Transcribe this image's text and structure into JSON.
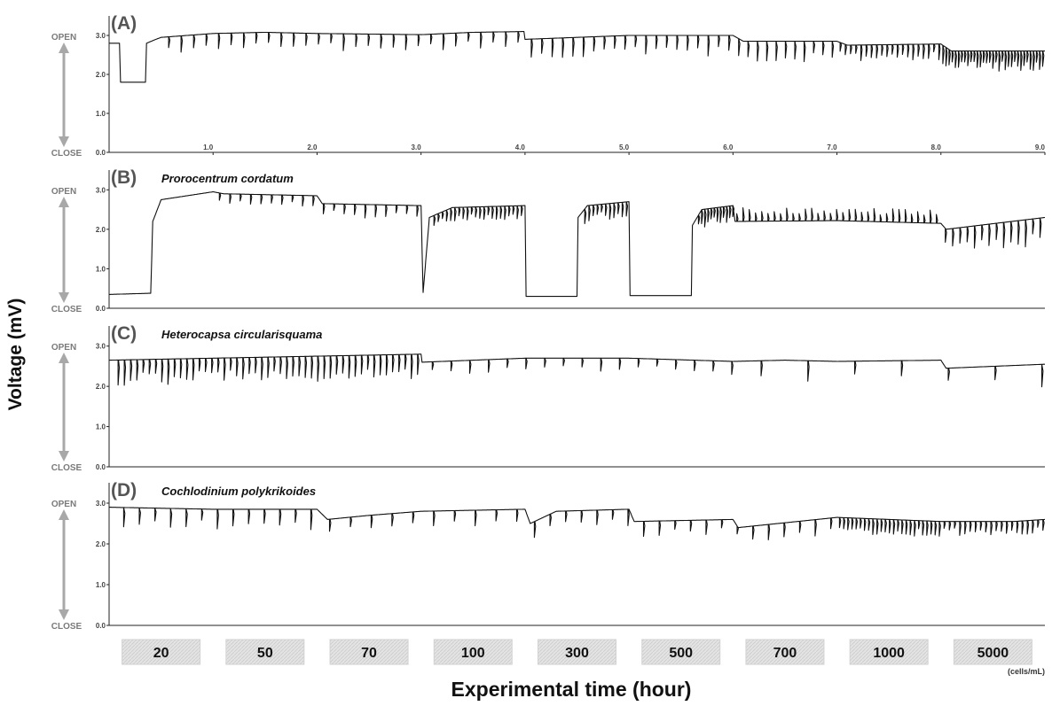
{
  "figure": {
    "ylabel": "Voltage (mV)",
    "xlabel": "Experimental time (hour)",
    "open_label": "OPEN",
    "close_label": "CLOSE",
    "concentration_unit": "(cells/mL)",
    "concentrations": [
      "20",
      "50",
      "70",
      "100",
      "300",
      "500",
      "700",
      "1000",
      "5000"
    ]
  },
  "chart_data": [
    {
      "type": "line",
      "panel": "(A)",
      "title": "",
      "ylim": [
        0,
        3.5
      ],
      "xlim": [
        0,
        9
      ],
      "yticks": [
        "0.0",
        "1.0",
        "2.0",
        "3.0"
      ],
      "xticks": [
        "1.0",
        "2.0",
        "3.0",
        "4.0",
        "5.0",
        "6.0",
        "7.0",
        "8.0",
        "9.0"
      ],
      "baseline": [
        [
          0,
          2.8
        ],
        [
          0.1,
          2.8
        ],
        [
          0.11,
          1.8
        ],
        [
          0.35,
          1.8
        ],
        [
          0.36,
          2.8
        ],
        [
          0.45,
          2.9
        ],
        [
          0.5,
          2.95
        ],
        [
          1.0,
          3.05
        ],
        [
          1.5,
          3.08
        ],
        [
          2.0,
          3.05
        ],
        [
          3.0,
          3.02
        ],
        [
          3.5,
          3.08
        ],
        [
          3.99,
          3.1
        ],
        [
          4.0,
          2.9
        ],
        [
          5.0,
          3.0
        ],
        [
          6.0,
          3.0
        ],
        [
          6.1,
          2.85
        ],
        [
          7.0,
          2.85
        ],
        [
          7.1,
          2.75
        ],
        [
          8.0,
          2.78
        ],
        [
          8.1,
          2.6
        ],
        [
          9.0,
          2.6
        ]
      ],
      "spikes": [
        {
          "range": [
            0.5,
            4.0
          ],
          "interval": 0.12,
          "depth": 0.4
        },
        {
          "range": [
            4.0,
            6.0
          ],
          "interval": 0.1,
          "depth": 0.5
        },
        {
          "range": [
            6.0,
            7.0
          ],
          "interval": 0.09,
          "depth": 0.5
        },
        {
          "range": [
            7.0,
            8.0
          ],
          "interval": 0.05,
          "depth": 0.35
        },
        {
          "range": [
            8.0,
            9.0
          ],
          "interval": 0.03,
          "depth": 0.45
        }
      ]
    },
    {
      "type": "line",
      "panel": "(B)",
      "title": "Prorocentrum cordatum",
      "ylim": [
        0,
        3.5
      ],
      "xlim": [
        0,
        9
      ],
      "yticks": [
        "0.0",
        "1.0",
        "2.0",
        "3.0"
      ],
      "xticks": [],
      "baseline": [
        [
          0,
          0.35
        ],
        [
          0.4,
          0.38
        ],
        [
          0.42,
          2.2
        ],
        [
          0.5,
          2.75
        ],
        [
          1.0,
          2.95
        ],
        [
          1.1,
          2.9
        ],
        [
          2.0,
          2.85
        ],
        [
          2.05,
          2.65
        ],
        [
          3.0,
          2.6
        ],
        [
          3.02,
          0.4
        ],
        [
          3.08,
          2.3
        ],
        [
          3.3,
          2.55
        ],
        [
          4.0,
          2.6
        ],
        [
          4.01,
          0.3
        ],
        [
          4.5,
          0.3
        ],
        [
          4.51,
          2.3
        ],
        [
          4.6,
          2.6
        ],
        [
          5.0,
          2.7
        ],
        [
          5.01,
          0.32
        ],
        [
          5.6,
          0.32
        ],
        [
          5.61,
          2.1
        ],
        [
          5.7,
          2.5
        ],
        [
          6.0,
          2.6
        ],
        [
          6.02,
          2.2
        ],
        [
          7.0,
          2.22
        ],
        [
          8.0,
          2.15
        ],
        [
          8.05,
          2.0
        ],
        [
          9.0,
          2.3
        ]
      ],
      "spikes": [
        {
          "range": [
            1.0,
            3.0
          ],
          "interval": 0.1,
          "depth": 0.3
        },
        {
          "range": [
            3.1,
            4.0
          ],
          "interval": 0.04,
          "depth": 0.3
        },
        {
          "range": [
            4.55,
            5.0
          ],
          "interval": 0.04,
          "depth": 0.35
        },
        {
          "range": [
            5.65,
            6.0
          ],
          "interval": 0.03,
          "depth": 0.4
        },
        {
          "range": [
            6.0,
            8.0
          ],
          "interval": 0.06,
          "depth": -0.3
        },
        {
          "range": [
            8.0,
            9.0
          ],
          "interval": 0.07,
          "depth": 0.6
        }
      ]
    },
    {
      "type": "line",
      "panel": "(C)",
      "title": "Heterocapsa circularisquama",
      "ylim": [
        0,
        3.5
      ],
      "xlim": [
        0,
        9
      ],
      "yticks": [
        "0.0",
        "1.0",
        "2.0",
        "3.0"
      ],
      "xticks": [],
      "baseline": [
        [
          0,
          2.65
        ],
        [
          1.0,
          2.7
        ],
        [
          2.0,
          2.75
        ],
        [
          3.0,
          2.8
        ],
        [
          3.01,
          2.6
        ],
        [
          4.0,
          2.7
        ],
        [
          5.0,
          2.7
        ],
        [
          6.0,
          2.62
        ],
        [
          6.5,
          2.65
        ],
        [
          7.0,
          2.62
        ],
        [
          8.0,
          2.65
        ],
        [
          8.05,
          2.45
        ],
        [
          9.0,
          2.55
        ]
      ],
      "spikes": [
        {
          "range": [
            0.05,
            3.0
          ],
          "interval": 0.06,
          "depth": 0.55
        },
        {
          "range": [
            3.0,
            6.0
          ],
          "interval": 0.18,
          "depth": 0.3
        },
        {
          "range": [
            6.0,
            9.0
          ],
          "interval": 0.45,
          "depth": 0.5
        }
      ]
    },
    {
      "type": "line",
      "panel": "(D)",
      "title": "Cochlodinium polykrikoides",
      "ylim": [
        0,
        3.5
      ],
      "xlim": [
        0,
        9
      ],
      "yticks": [
        "0.0",
        "1.0",
        "2.0",
        "3.0"
      ],
      "xticks": [],
      "baseline": [
        [
          0,
          2.9
        ],
        [
          1.0,
          2.85
        ],
        [
          2.0,
          2.85
        ],
        [
          2.1,
          2.6
        ],
        [
          2.5,
          2.7
        ],
        [
          3.0,
          2.8
        ],
        [
          4.0,
          2.85
        ],
        [
          4.05,
          2.5
        ],
        [
          4.3,
          2.8
        ],
        [
          5.0,
          2.85
        ],
        [
          5.05,
          2.55
        ],
        [
          6.0,
          2.6
        ],
        [
          6.05,
          2.4
        ],
        [
          7.0,
          2.65
        ],
        [
          7.5,
          2.6
        ],
        [
          8.0,
          2.55
        ],
        [
          8.7,
          2.55
        ],
        [
          9.0,
          2.6
        ]
      ],
      "spikes": [
        {
          "range": [
            0.05,
            2.0
          ],
          "interval": 0.15,
          "depth": 0.45
        },
        {
          "range": [
            2.0,
            4.0
          ],
          "interval": 0.2,
          "depth": 0.35
        },
        {
          "range": [
            4.0,
            7.0
          ],
          "interval": 0.15,
          "depth": 0.35
        },
        {
          "range": [
            7.0,
            8.0
          ],
          "interval": 0.04,
          "depth": 0.35
        },
        {
          "range": [
            8.0,
            9.0
          ],
          "interval": 0.05,
          "depth": 0.3
        }
      ]
    }
  ]
}
